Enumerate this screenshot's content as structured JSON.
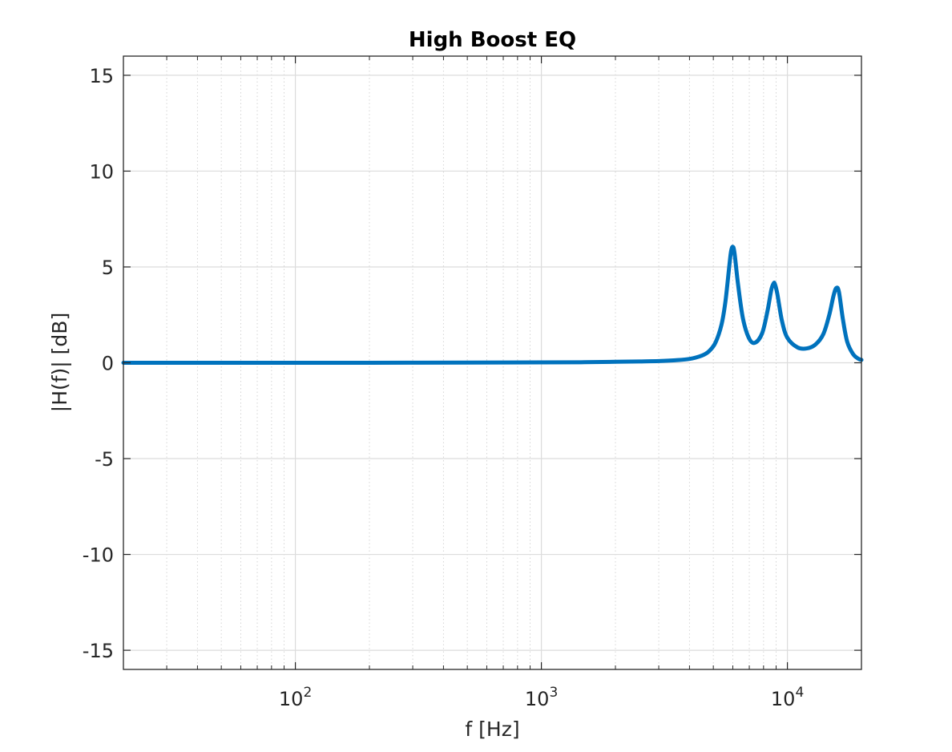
{
  "chart_data": {
    "type": "line",
    "title": "High Boost EQ",
    "xlabel": "f [Hz]",
    "ylabel": "|H(f)| [dB]",
    "xscale": "log",
    "xlim": [
      20,
      20000
    ],
    "ylim": [
      -16,
      16
    ],
    "grid": true,
    "minor_grid_x": true,
    "line_color": "#0072bd",
    "x_ticks": [
      100,
      1000,
      10000
    ],
    "x_tick_labels": [
      {
        "base": "10",
        "exp": "2"
      },
      {
        "base": "10",
        "exp": "3"
      },
      {
        "base": "10",
        "exp": "4"
      }
    ],
    "y_ticks": [
      -15,
      -10,
      -5,
      0,
      5,
      10,
      15
    ],
    "y_tick_labels": [
      "-15",
      "-10",
      "-5",
      "0",
      "5",
      "10",
      "15"
    ],
    "series": [
      {
        "x": [
          20,
          50,
          100,
          200,
          500,
          1000,
          1500,
          2000,
          2500,
          3000,
          3500,
          4000,
          4500,
          4800,
          5100,
          5400,
          5600,
          5800,
          5900,
          6000,
          6100,
          6300,
          6600,
          7000,
          7400,
          7900,
          8300,
          8600,
          8800,
          8900,
          9100,
          9500,
          10000,
          11000,
          12000,
          13000,
          14000,
          14800,
          15400,
          15800,
          16200,
          16800,
          17500,
          18500,
          19500,
          20000
        ],
        "y": [
          0,
          0,
          0,
          0,
          0.01,
          0.02,
          0.03,
          0.05,
          0.07,
          0.09,
          0.13,
          0.2,
          0.38,
          0.6,
          1.05,
          2.0,
          3.2,
          5.0,
          5.8,
          6.05,
          5.7,
          4.1,
          2.3,
          1.25,
          1.05,
          1.55,
          2.7,
          3.8,
          4.15,
          4.1,
          3.6,
          2.2,
          1.3,
          0.8,
          0.75,
          0.95,
          1.5,
          2.5,
          3.5,
          3.9,
          3.7,
          2.3,
          1.1,
          0.45,
          0.2,
          0.15
        ]
      }
    ]
  }
}
